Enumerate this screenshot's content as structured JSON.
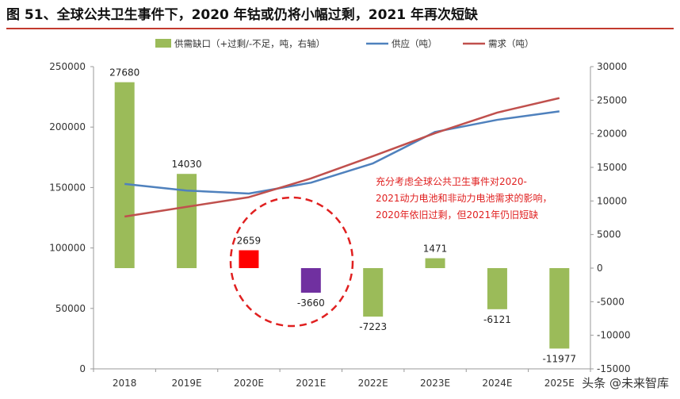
{
  "title": "图 51、全球公共卫生事件下，2020 年钴或仍将小幅过剩，2021 年再次短缺",
  "watermark": "头条 @未来智库",
  "annotation_lines": [
    "充分考虑全球公共卫生事件对2020-",
    "2021动力电池和非动力电池需求的影响，",
    "2020年依旧过剩，但2021年仍旧短缺"
  ],
  "colors": {
    "gap": "#9bbb59",
    "supply": "#4f81bd",
    "demand": "#c0504d",
    "highlight_2020": "#ff0000",
    "highlight_2021": "#7030a0",
    "annotation": "#e02020",
    "circle": "#e02020"
  },
  "chart_data": {
    "type": "bar+line",
    "categories": [
      "2018",
      "2019E",
      "2020E",
      "2021E",
      "2022E",
      "2023E",
      "2024E",
      "2025E"
    ],
    "legend_position": "top",
    "grid": false,
    "left_axis": {
      "min": 0,
      "max": 250000,
      "step": 50000,
      "ticks": [
        "0",
        "50000",
        "100000",
        "150000",
        "200000",
        "250000"
      ]
    },
    "right_axis": {
      "min": -15000,
      "max": 30000,
      "step": 5000,
      "ticks": [
        "-15000",
        "-10000",
        "-5000",
        "0",
        "5000",
        "10000",
        "15000",
        "20000",
        "25000",
        "30000"
      ]
    },
    "series": [
      {
        "name": "供需缺口（+过剩/-不足，吨，右轴）",
        "kind": "bar",
        "axis": "right",
        "values": [
          27680,
          14030,
          2659,
          -3660,
          -7223,
          1471,
          -6121,
          -11977
        ],
        "labels": [
          "27680",
          "14030",
          "2659",
          "-3660",
          "-7223",
          "1471",
          "-6121",
          "-11977"
        ]
      },
      {
        "name": "供应（吨）",
        "kind": "line",
        "axis": "left",
        "values": [
          153000,
          147500,
          145000,
          154000,
          170000,
          196000,
          206000,
          213000
        ]
      },
      {
        "name": "需求（吨）",
        "kind": "line",
        "axis": "left",
        "values": [
          126000,
          134000,
          142000,
          157500,
          176000,
          195000,
          212000,
          224000
        ]
      }
    ]
  }
}
